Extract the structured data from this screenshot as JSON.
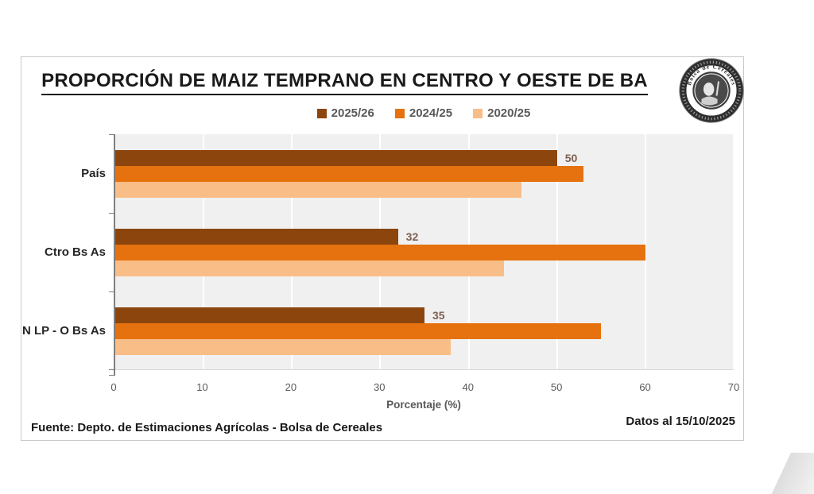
{
  "header": {
    "title": "PROPORCIÓN DE MAIZ TEMPRANO EN CENTRO Y OESTE DE BA"
  },
  "logo": {
    "arc_text": "Bolsa de Cereales"
  },
  "chart_data": {
    "type": "bar",
    "orientation": "horizontal",
    "title": "PROPORCIÓN DE MAIZ TEMPRANO EN CENTRO Y OESTE DE BA",
    "categories": [
      "País",
      "Ctro Bs As",
      "N LP - O Bs As"
    ],
    "series": [
      {
        "name": "2025/26",
        "color": "#8C450D",
        "values": [
          50,
          32,
          35
        ],
        "show_labels": true
      },
      {
        "name": "2024/25",
        "color": "#E5720E",
        "values": [
          53,
          60,
          55
        ],
        "show_labels": false
      },
      {
        "name": "2020/25",
        "color": "#F9BD88",
        "values": [
          46,
          44,
          38
        ],
        "show_labels": false
      }
    ],
    "xlabel": "Porcentaje (%)",
    "xlim": [
      0,
      70
    ],
    "xticks": [
      0,
      10,
      20,
      30,
      40,
      50,
      60,
      70
    ],
    "grid": true,
    "gridline_color": "#ffffff",
    "plot_bg": "#f0f0f0",
    "legend_position": "top"
  },
  "footer": {
    "source": "Fuente: Depto. de Estimaciones Agrícolas - Bolsa de Cereales",
    "date": "Datos al 15/10/2025"
  }
}
